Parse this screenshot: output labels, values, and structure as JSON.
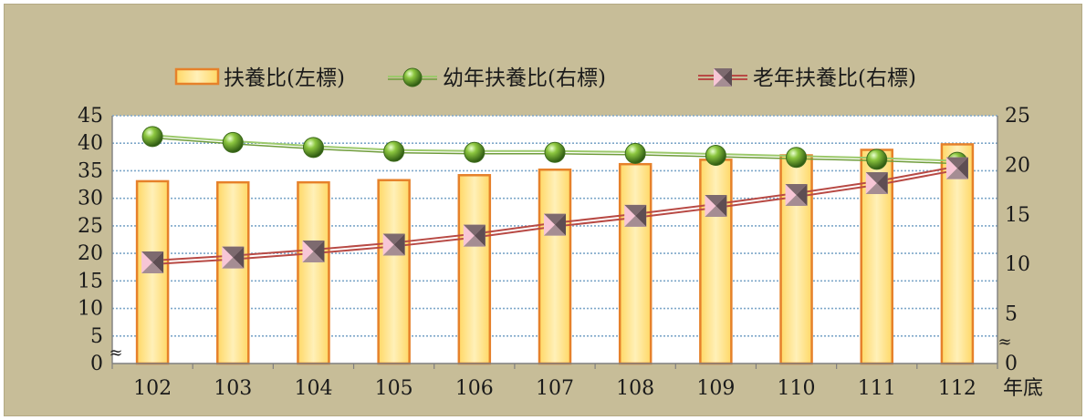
{
  "chart_data": {
    "type": "bar+line",
    "categories": [
      "102",
      "103",
      "104",
      "105",
      "106",
      "107",
      "108",
      "109",
      "110",
      "111",
      "112"
    ],
    "x_unit": "年底",
    "series": [
      {
        "name": "扶養比(左標)",
        "type": "bar",
        "axis": "left",
        "color": "#ffe082",
        "border_color": "#e6812a",
        "values": [
          33.1,
          32.9,
          32.9,
          33.3,
          34.2,
          35.2,
          36.2,
          37.0,
          37.8,
          38.8,
          39.8
        ]
      },
      {
        "name": "幼年扶養比(右標)",
        "type": "line",
        "axis": "right",
        "color": "#8fbf56",
        "marker": "green-sphere",
        "values": [
          22.9,
          22.3,
          21.8,
          21.4,
          21.3,
          21.3,
          21.2,
          21.0,
          20.8,
          20.6,
          20.3
        ]
      },
      {
        "name": "老年扶養比(右標)",
        "type": "line",
        "axis": "right",
        "color": "#c0504d",
        "marker": "pink-gray-cube",
        "values": [
          10.2,
          10.7,
          11.3,
          12.0,
          12.9,
          14.0,
          14.9,
          15.9,
          17.0,
          18.2,
          19.7
        ]
      }
    ],
    "left_axis": {
      "min": 0,
      "max": 45,
      "step": 5,
      "ticks": [
        "0",
        "5",
        "10",
        "15",
        "20",
        "25",
        "30",
        "35",
        "40",
        "45"
      ]
    },
    "right_axis": {
      "min": 0,
      "max": 25,
      "step": 5,
      "ticks": [
        "0",
        "5",
        "10",
        "15",
        "20",
        "25"
      ]
    },
    "axis_break_symbol": "≈",
    "gridlines": true,
    "legend_position": "top"
  },
  "colors": {
    "frame_bg": "#c7bd98",
    "plot_bg": "#ffffff",
    "grid": "#7ea7c9"
  }
}
